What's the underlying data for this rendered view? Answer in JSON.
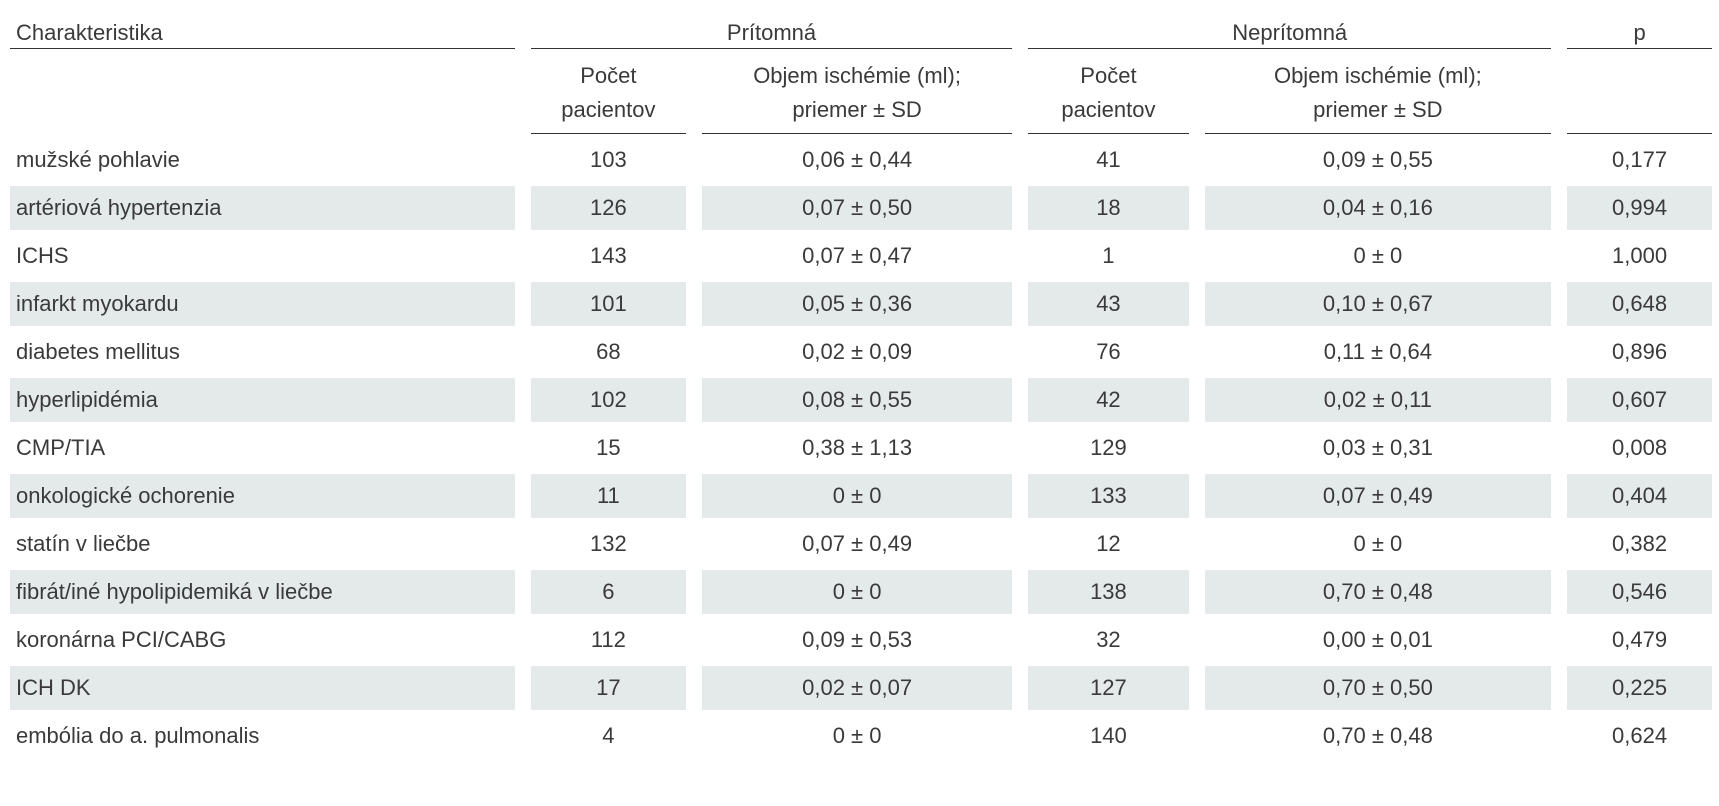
{
  "header": {
    "columns": [
      "Charakteristika",
      "Prítomná",
      "Neprítomná",
      "p"
    ],
    "subcolumns": [
      [
        "Počet",
        "pacientov"
      ],
      [
        "Objem ischémie (ml);",
        "priemer ± SD"
      ],
      [
        "Počet",
        "pacientov"
      ],
      [
        "Objem ischémie (ml);",
        "priemer ± SD"
      ]
    ]
  },
  "table": {
    "rows": [
      [
        "mužské pohlavie",
        103,
        "0,06 ± 0,44",
        41,
        "0,09 ± 0,55",
        "0,177"
      ],
      [
        "artériová hypertenzia",
        126,
        "0,07 ± 0,50",
        18,
        "0,04 ± 0,16",
        "0,994"
      ],
      [
        "ICHS",
        143,
        "0,07 ± 0,47",
        1,
        "0 ± 0",
        "1,000"
      ],
      [
        "infarkt myokardu",
        101,
        "0,05 ± 0,36",
        43,
        "0,10 ± 0,67",
        "0,648"
      ],
      [
        "diabetes mellitus",
        68,
        "0,02 ± 0,09",
        76,
        "0,11 ± 0,64",
        "0,896"
      ],
      [
        "hyperlipidémia",
        102,
        "0,08 ± 0,55",
        42,
        "0,02 ± 0,11",
        "0,607"
      ],
      [
        "CMP/TIA",
        15,
        "0,38 ± 1,13",
        129,
        "0,03 ± 0,31",
        "0,008"
      ],
      [
        "onkologické ochorenie",
        11,
        "0 ± 0",
        133,
        "0,07 ± 0,49",
        "0,404"
      ],
      [
        "statín v liečbe",
        132,
        "0,07 ± 0,49",
        12,
        "0 ± 0",
        "0,382"
      ],
      [
        "fibrát/iné hypolipidemiká v liečbe",
        6,
        "0 ± 0",
        138,
        "0,70 ± 0,48",
        "0,546"
      ],
      [
        "koronárna PCI/CABG",
        112,
        "0,09 ± 0,53",
        32,
        "0,00 ± 0,01",
        "0,479"
      ],
      [
        "ICH DK",
        17,
        "0,02 ± 0,07",
        127,
        "0,70 ± 0,50",
        "0,225"
      ],
      [
        "embólia do a. pulmonalis",
        4,
        "0 ± 0",
        140,
        "0,70 ± 0,48",
        "0,624"
      ]
    ]
  }
}
